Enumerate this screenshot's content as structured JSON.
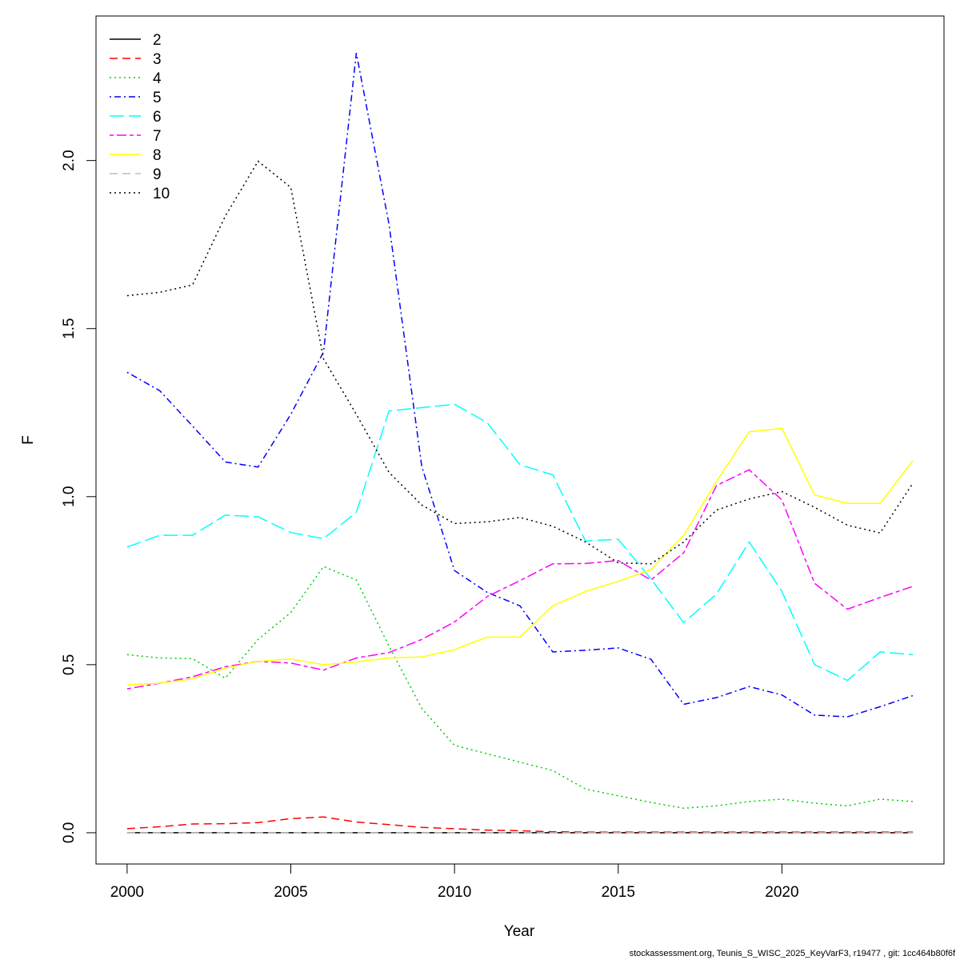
{
  "footer": "stockassessment.org, Teunis_S_WISC_2025_KeyVarF3, r19477 , git: 1cc464b80f6f",
  "chart_data": {
    "type": "line",
    "xlabel": "Year",
    "ylabel": "F",
    "xlim": [
      1999.05,
      2024.95
    ],
    "ylim": [
      -0.093,
      2.43
    ],
    "x_ticks": [
      2000,
      2005,
      2010,
      2015,
      2020
    ],
    "y_ticks": [
      0.0,
      0.5,
      1.0,
      1.5,
      2.0
    ],
    "y_tick_labels": [
      "0.0",
      "0.5",
      "1.0",
      "1.5",
      "2.0"
    ],
    "grid": false,
    "legend_position": "top-left",
    "x": [
      2000,
      2001,
      2002,
      2003,
      2004,
      2005,
      2006,
      2007,
      2008,
      2009,
      2010,
      2011,
      2012,
      2013,
      2014,
      2015,
      2016,
      2017,
      2018,
      2019,
      2020,
      2021,
      2022,
      2023,
      2024
    ],
    "series": [
      {
        "name": "2",
        "color": "#000000",
        "dash": "solid",
        "values": [
          0.0,
          0.0,
          0.0,
          0.0,
          0.0,
          0.0,
          0.0,
          0.0,
          0.0,
          0.0,
          0.0,
          0.0,
          0.0,
          0.0,
          0.0,
          0.0,
          0.0,
          0.0,
          0.0,
          0.0,
          0.0,
          0.0,
          0.0,
          0.0,
          0.0
        ]
      },
      {
        "name": "3",
        "color": "#ff0000",
        "dash": "dashed",
        "values": [
          0.012,
          0.018,
          0.026,
          0.027,
          0.03,
          0.042,
          0.047,
          0.032,
          0.024,
          0.016,
          0.012,
          0.008,
          0.006,
          0.003,
          0.002,
          0.002,
          0.002,
          0.002,
          0.002,
          0.002,
          0.002,
          0.002,
          0.002,
          0.002,
          0.002
        ]
      },
      {
        "name": "4",
        "color": "#00cd00",
        "dash": "dotted",
        "values": [
          0.53,
          0.52,
          0.518,
          0.46,
          0.575,
          0.655,
          0.792,
          0.752,
          0.555,
          0.37,
          0.26,
          0.235,
          0.21,
          0.185,
          0.13,
          0.11,
          0.09,
          0.073,
          0.08,
          0.093,
          0.1,
          0.088,
          0.08,
          0.1,
          0.093
        ]
      },
      {
        "name": "5",
        "color": "#0000ff",
        "dash": "dotdash",
        "values": [
          1.37,
          1.315,
          1.21,
          1.103,
          1.088,
          1.245,
          1.43,
          2.32,
          1.81,
          1.09,
          0.78,
          0.715,
          0.675,
          0.538,
          0.543,
          0.55,
          0.516,
          0.382,
          0.402,
          0.435,
          0.41,
          0.35,
          0.345,
          0.375,
          0.408
        ]
      },
      {
        "name": "6",
        "color": "#00ffff",
        "dash": "longdash",
        "values": [
          0.85,
          0.885,
          0.885,
          0.945,
          0.94,
          0.893,
          0.875,
          0.953,
          1.255,
          1.265,
          1.275,
          1.22,
          1.095,
          1.065,
          0.868,
          0.873,
          0.755,
          0.625,
          0.71,
          0.865,
          0.718,
          0.5,
          0.453,
          0.538,
          0.53
        ]
      },
      {
        "name": "7",
        "color": "#ff00ff",
        "dash": "twodash",
        "values": [
          0.428,
          0.445,
          0.464,
          0.494,
          0.51,
          0.505,
          0.484,
          0.52,
          0.536,
          0.575,
          0.627,
          0.703,
          0.75,
          0.8,
          0.801,
          0.81,
          0.752,
          0.833,
          1.033,
          1.08,
          0.99,
          0.742,
          0.665,
          0.7,
          0.733
        ]
      },
      {
        "name": "8",
        "color": "#ffff00",
        "dash": "solid",
        "values": [
          0.44,
          0.445,
          0.458,
          0.49,
          0.51,
          0.517,
          0.5,
          0.508,
          0.52,
          0.523,
          0.545,
          0.582,
          0.582,
          0.675,
          0.718,
          0.748,
          0.783,
          0.885,
          1.045,
          1.193,
          1.203,
          1.005,
          0.98,
          0.98,
          1.107
        ]
      },
      {
        "name": "9",
        "color": "#bebebe",
        "dash": "dashed",
        "values": [
          0.0,
          0.0,
          0.0,
          0.0,
          0.0,
          0.0,
          0.0,
          0.0,
          0.0,
          0.0,
          0.0,
          0.0,
          0.0,
          0.0,
          0.0,
          0.0,
          0.0,
          0.0,
          0.0,
          0.0,
          0.0,
          0.0,
          0.0,
          0.0,
          0.0
        ]
      },
      {
        "name": "10",
        "color": "#000000",
        "dash": "dotted",
        "values": [
          1.598,
          1.608,
          1.63,
          1.835,
          1.998,
          1.92,
          1.41,
          1.245,
          1.072,
          0.975,
          0.92,
          0.925,
          0.938,
          0.912,
          0.865,
          0.803,
          0.8,
          0.865,
          0.96,
          0.993,
          1.015,
          0.968,
          0.915,
          0.892,
          1.04
        ]
      }
    ]
  }
}
